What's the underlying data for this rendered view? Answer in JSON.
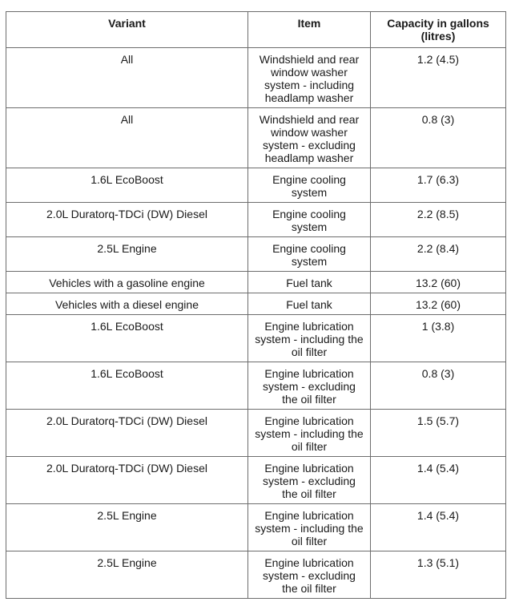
{
  "headers": [
    "Variant",
    "Item",
    "Capacity in gallons (litres)"
  ],
  "rows": [
    {
      "variant": "All",
      "item": "Windshield and rear window washer system - including headlamp washer",
      "capacity": "1.2 (4.5)"
    },
    {
      "variant": "All",
      "item": "Windshield and rear window washer system - excluding headlamp washer",
      "capacity": "0.8 (3)"
    },
    {
      "variant": "1.6L EcoBoost",
      "item": "Engine cooling system",
      "capacity": "1.7 (6.3)"
    },
    {
      "variant": "2.0L Duratorq-TDCi (DW) Diesel",
      "item": "Engine cooling system",
      "capacity": "2.2 (8.5)"
    },
    {
      "variant": "2.5L Engine",
      "item": "Engine cooling system",
      "capacity": "2.2 (8.4)"
    },
    {
      "variant": "Vehicles with a gasoline engine",
      "item": "Fuel tank",
      "capacity": "13.2 (60)"
    },
    {
      "variant": "Vehicles with a diesel engine",
      "item": "Fuel tank",
      "capacity": "13.2 (60)"
    },
    {
      "variant": "1.6L EcoBoost",
      "item": "Engine lubrication system - including the oil filter",
      "capacity": "1 (3.8)"
    },
    {
      "variant": "1.6L EcoBoost",
      "item": "Engine lubrication system - excluding the oil filter",
      "capacity": "0.8 (3)"
    },
    {
      "variant": "2.0L Duratorq-TDCi (DW) Diesel",
      "item": "Engine lubrication system - including the oil filter",
      "capacity": "1.5 (5.7)"
    },
    {
      "variant": "2.0L Duratorq-TDCi (DW) Diesel",
      "item": "Engine lubrication system - excluding the oil filter",
      "capacity": "1.4 (5.4)"
    },
    {
      "variant": "2.5L Engine",
      "item": "Engine lubrication system - including the oil filter",
      "capacity": "1.4 (5.4)"
    },
    {
      "variant": "2.5L Engine",
      "item": "Engine lubrication system - excluding the oil filter",
      "capacity": "1.3 (5.1)"
    }
  ]
}
